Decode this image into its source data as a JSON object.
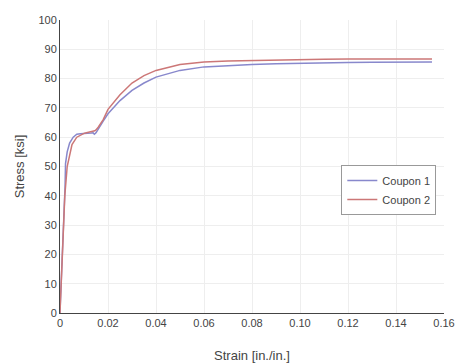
{
  "chart_data": {
    "type": "line",
    "xlabel": "Strain [in./in.]",
    "ylabel": "Stress [ksi]",
    "xlim": [
      0,
      0.16
    ],
    "ylim": [
      0,
      100
    ],
    "xticks": [
      0,
      0.02,
      0.04,
      0.06,
      0.08,
      {
        "value": 0.1,
        "label": "0.10"
      },
      0.12,
      0.14,
      0.16
    ],
    "yticks": [
      0,
      10,
      20,
      30,
      40,
      50,
      60,
      70,
      80,
      90,
      100
    ],
    "grid": true,
    "legend": "right",
    "series": [
      {
        "name": "Coupon 1",
        "color": "#8888CC",
        "x": [
          0.0,
          1e-05,
          0.0021,
          0.0022,
          0.0023,
          0.003,
          0.004,
          0.0055,
          0.007,
          0.0085,
          0.01,
          0.012,
          0.013,
          0.0138,
          0.01395,
          0.0141,
          0.0142,
          0.0143,
          0.01445,
          0.015,
          0.016,
          0.018,
          0.02,
          0.025,
          0.03,
          0.035,
          0.04,
          0.05,
          0.06,
          0.07,
          0.08,
          0.09,
          0.1,
          0.11,
          0.12,
          0.13,
          0.14,
          0.15,
          0.155
        ],
        "values": [
          0.0,
          0.5,
          43.0,
          47.0,
          51.0,
          55.0,
          58.0,
          60.0,
          61.0,
          61.2,
          61.2,
          61.3,
          61.4,
          61.5,
          61.3,
          61.1,
          61.05,
          61.0,
          61.1,
          61.5,
          63.0,
          65.5,
          68.0,
          72.5,
          76.0,
          78.5,
          80.5,
          82.8,
          84.0,
          84.5,
          84.8,
          85.1,
          85.3,
          85.4,
          85.5,
          85.6,
          85.7,
          85.7,
          85.7
        ]
      },
      {
        "name": "Coupon 2",
        "color": "#CC7777",
        "x": [
          0.0,
          1e-05,
          0.001,
          0.0015,
          0.002,
          0.003,
          0.005,
          0.007,
          0.009,
          0.01,
          0.011,
          0.012,
          0.013,
          0.0135,
          0.01365,
          0.0138,
          0.014,
          0.0145,
          0.015,
          0.016,
          0.018,
          0.02,
          0.025,
          0.03,
          0.035,
          0.04,
          0.05,
          0.06,
          0.07,
          0.08,
          0.09,
          0.1,
          0.11,
          0.12,
          0.13,
          0.14,
          0.15,
          0.155
        ],
        "values": [
          0.0,
          0.3,
          20.0,
          30.0,
          40.0,
          50.0,
          57.5,
          60.0,
          61.0,
          61.3,
          61.5,
          61.7,
          61.8,
          62.0,
          62.0,
          62.0,
          62.1,
          62.2,
          62.5,
          63.5,
          66.0,
          69.5,
          74.5,
          78.5,
          81.0,
          82.8,
          84.8,
          85.7,
          86.0,
          86.2,
          86.4,
          86.5,
          86.6,
          86.65,
          86.7,
          86.7,
          86.7,
          86.7
        ]
      }
    ]
  }
}
